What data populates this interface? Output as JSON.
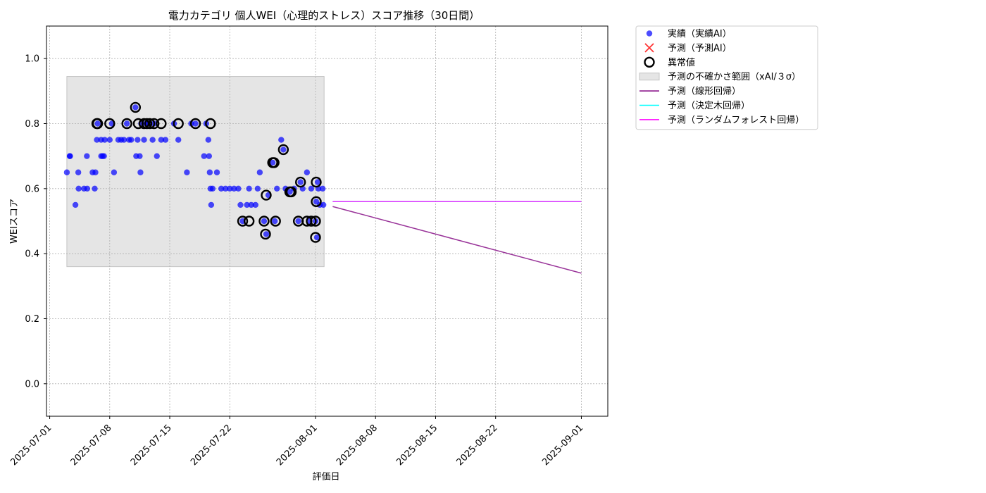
{
  "chart_data": {
    "type": "scatter",
    "title": "電力カテゴリ 個人WEI（心理的ストレス）スコア推移（30日間）",
    "xlabel": "評価日",
    "ylabel": "WEIスコア",
    "xlim": [
      "2025-06-30T15:00",
      "2025-09-04T02:00"
    ],
    "ylim": [
      -0.1,
      1.1
    ],
    "grid": true,
    "legend_position": "outside-top-right",
    "x_ticks": [
      "2025-07-01",
      "2025-07-08",
      "2025-07-15",
      "2025-07-22",
      "2025-08-01",
      "2025-08-08",
      "2025-08-15",
      "2025-08-22",
      "2025-09-01"
    ],
    "y_ticks": [
      "0.0",
      "0.2",
      "0.4",
      "0.6",
      "0.8",
      "1.0"
    ],
    "uncertainty_band": {
      "x_start": "2025-07-03T00:00",
      "x_end": "2025-08-02T00:00",
      "y_low": 0.36,
      "y_high": 0.945,
      "color": "#d3d3d3"
    },
    "series": [
      {
        "name": "実績（実績AI）",
        "kind": "scatter",
        "color": "#0000ff",
        "points": [
          [
            "2025-07-03T00:00",
            0.65
          ],
          [
            "2025-07-03T08:00",
            0.7
          ],
          [
            "2025-07-03T09:00",
            0.7
          ],
          [
            "2025-07-04T00:00",
            0.55
          ],
          [
            "2025-07-04T08:00",
            0.65
          ],
          [
            "2025-07-04T09:00",
            0.6
          ],
          [
            "2025-07-05T00:00",
            0.6
          ],
          [
            "2025-07-05T08:00",
            0.7
          ],
          [
            "2025-07-05T09:00",
            0.6
          ],
          [
            "2025-07-06T00:00",
            0.65
          ],
          [
            "2025-07-06T06:00",
            0.6
          ],
          [
            "2025-07-06T08:00",
            0.65
          ],
          [
            "2025-07-06T12:00",
            0.75
          ],
          [
            "2025-07-06T14:00",
            0.8
          ],
          [
            "2025-07-07T00:00",
            0.75
          ],
          [
            "2025-07-07T00:00",
            0.7
          ],
          [
            "2025-07-07T04:00",
            0.7
          ],
          [
            "2025-07-07T08:00",
            0.7
          ],
          [
            "2025-07-07T10:00",
            0.75
          ],
          [
            "2025-07-08T00:00",
            0.75
          ],
          [
            "2025-07-08T06:00",
            0.8
          ],
          [
            "2025-07-08T12:00",
            0.65
          ],
          [
            "2025-07-09T00:00",
            0.75
          ],
          [
            "2025-07-09T08:00",
            0.75
          ],
          [
            "2025-07-09T16:00",
            0.75
          ],
          [
            "2025-07-10T00:00",
            0.8
          ],
          [
            "2025-07-10T06:00",
            0.75
          ],
          [
            "2025-07-10T12:00",
            0.75
          ],
          [
            "2025-07-11T00:00",
            0.85
          ],
          [
            "2025-07-11T02:00",
            0.7
          ],
          [
            "2025-07-11T06:00",
            0.75
          ],
          [
            "2025-07-11T12:00",
            0.7
          ],
          [
            "2025-07-11T14:00",
            0.65
          ],
          [
            "2025-07-11T16:00",
            0.8
          ],
          [
            "2025-07-12T00:00",
            0.75
          ],
          [
            "2025-07-12T06:00",
            0.8
          ],
          [
            "2025-07-12T12:00",
            0.8
          ],
          [
            "2025-07-13T00:00",
            0.75
          ],
          [
            "2025-07-13T04:00",
            0.8
          ],
          [
            "2025-07-13T12:00",
            0.7
          ],
          [
            "2025-07-14T00:00",
            0.75
          ],
          [
            "2025-07-14T12:00",
            0.75
          ],
          [
            "2025-07-15T12:00",
            0.8
          ],
          [
            "2025-07-16T00:00",
            0.75
          ],
          [
            "2025-07-17T00:00",
            0.65
          ],
          [
            "2025-07-17T12:00",
            0.8
          ],
          [
            "2025-07-18T00:00",
            0.8
          ],
          [
            "2025-07-19T00:00",
            0.7
          ],
          [
            "2025-07-19T06:00",
            0.8
          ],
          [
            "2025-07-19T12:00",
            0.75
          ],
          [
            "2025-07-19T14:00",
            0.7
          ],
          [
            "2025-07-19T16:00",
            0.65
          ],
          [
            "2025-07-19T18:00",
            0.6
          ],
          [
            "2025-07-19T20:00",
            0.55
          ],
          [
            "2025-07-20T00:00",
            0.6
          ],
          [
            "2025-07-20T12:00",
            0.65
          ],
          [
            "2025-07-21T00:00",
            0.6
          ],
          [
            "2025-07-21T12:00",
            0.6
          ],
          [
            "2025-07-22T00:00",
            0.6
          ],
          [
            "2025-07-22T12:00",
            0.6
          ],
          [
            "2025-07-23T00:00",
            0.6
          ],
          [
            "2025-07-23T06:00",
            0.55
          ],
          [
            "2025-07-23T12:00",
            0.5
          ],
          [
            "2025-07-24T00:00",
            0.55
          ],
          [
            "2025-07-24T06:00",
            0.6
          ],
          [
            "2025-07-24T12:00",
            0.55
          ],
          [
            "2025-07-25T00:00",
            0.55
          ],
          [
            "2025-07-25T06:00",
            0.6
          ],
          [
            "2025-07-25T12:00",
            0.65
          ],
          [
            "2025-07-26T00:00",
            0.5
          ],
          [
            "2025-07-26T06:00",
            0.46
          ],
          [
            "2025-07-26T12:00",
            0.58
          ],
          [
            "2025-07-27T00:00",
            0.68
          ],
          [
            "2025-07-27T06:00",
            0.5
          ],
          [
            "2025-07-27T12:00",
            0.6
          ],
          [
            "2025-07-28T00:00",
            0.75
          ],
          [
            "2025-07-28T06:00",
            0.72
          ],
          [
            "2025-07-28T12:00",
            0.6
          ],
          [
            "2025-07-29T00:00",
            0.59
          ],
          [
            "2025-07-29T12:00",
            0.6
          ],
          [
            "2025-07-30T00:00",
            0.5
          ],
          [
            "2025-07-30T06:00",
            0.62
          ],
          [
            "2025-07-30T12:00",
            0.6
          ],
          [
            "2025-07-31T00:00",
            0.65
          ],
          [
            "2025-07-31T06:00",
            0.5
          ],
          [
            "2025-07-31T12:00",
            0.6
          ],
          [
            "2025-08-01T00:00",
            0.5
          ],
          [
            "2025-08-01T02:00",
            0.56
          ],
          [
            "2025-08-01T04:00",
            0.45
          ],
          [
            "2025-08-01T06:00",
            0.62
          ],
          [
            "2025-08-01T08:00",
            0.6
          ],
          [
            "2025-08-01T12:00",
            0.55
          ],
          [
            "2025-08-01T20:00",
            0.6
          ],
          [
            "2025-08-01T22:00",
            0.55
          ]
        ]
      },
      {
        "name": "予測（予測AI）",
        "kind": "scatter-x",
        "color": "#ff0000",
        "points": []
      },
      {
        "name": "異常値",
        "kind": "outlier-ring",
        "color": "#000000",
        "points": [
          [
            "2025-07-06T12:00",
            0.8
          ],
          [
            "2025-07-06T14:00",
            0.8
          ],
          [
            "2025-07-08T00:00",
            0.8
          ],
          [
            "2025-07-10T00:00",
            0.8
          ],
          [
            "2025-07-11T00:00",
            0.85
          ],
          [
            "2025-07-11T08:00",
            0.8
          ],
          [
            "2025-07-12T00:00",
            0.8
          ],
          [
            "2025-07-12T08:00",
            0.8
          ],
          [
            "2025-07-12T16:00",
            0.8
          ],
          [
            "2025-07-13T04:00",
            0.8
          ],
          [
            "2025-07-14T00:00",
            0.8
          ],
          [
            "2025-07-16T00:00",
            0.8
          ],
          [
            "2025-07-18T00:00",
            0.8
          ],
          [
            "2025-07-19T18:00",
            0.8
          ],
          [
            "2025-07-23T12:00",
            0.5
          ],
          [
            "2025-07-24T06:00",
            0.5
          ],
          [
            "2025-07-26T00:00",
            0.5
          ],
          [
            "2025-07-26T04:00",
            0.46
          ],
          [
            "2025-07-26T06:00",
            0.58
          ],
          [
            "2025-07-27T00:00",
            0.68
          ],
          [
            "2025-07-27T04:00",
            0.68
          ],
          [
            "2025-07-27T08:00",
            0.5
          ],
          [
            "2025-07-28T06:00",
            0.72
          ],
          [
            "2025-07-29T00:00",
            0.59
          ],
          [
            "2025-07-29T04:00",
            0.59
          ],
          [
            "2025-07-30T00:00",
            0.5
          ],
          [
            "2025-07-30T06:00",
            0.62
          ],
          [
            "2025-07-31T00:00",
            0.5
          ],
          [
            "2025-07-31T12:00",
            0.5
          ],
          [
            "2025-08-01T00:00",
            0.5
          ],
          [
            "2025-08-01T00:00",
            0.45
          ],
          [
            "2025-08-01T02:00",
            0.56
          ],
          [
            "2025-08-01T02:00",
            0.62
          ]
        ]
      },
      {
        "name": "予測（線形回帰）",
        "kind": "line",
        "color": "#800080",
        "points": [
          [
            "2025-08-03T00:00",
            0.545
          ],
          [
            "2025-09-01T00:00",
            0.34
          ]
        ]
      },
      {
        "name": "予測（決定木回帰）",
        "kind": "line",
        "color": "#00ffff",
        "points": [
          [
            "2025-08-03T00:00",
            0.56
          ],
          [
            "2025-09-01T00:00",
            0.56
          ]
        ]
      },
      {
        "name": "予測（ランダムフォレスト回帰）",
        "kind": "line",
        "color": "#ff00ff",
        "points": [
          [
            "2025-08-03T00:00",
            0.56
          ],
          [
            "2025-09-01T00:00",
            0.56
          ]
        ]
      }
    ],
    "legend": [
      {
        "label": "実績（実績AI）",
        "marker": "dot",
        "color": "#0000ff"
      },
      {
        "label": "予測（予測AI）",
        "marker": "x",
        "color": "#ff0000"
      },
      {
        "label": "異常値",
        "marker": "ring",
        "color": "#000000"
      },
      {
        "label": "予測の不確かさ範囲（xAI/３σ）",
        "marker": "patch",
        "color": "#d3d3d3"
      },
      {
        "label": "予測（線形回帰）",
        "marker": "line",
        "color": "#800080"
      },
      {
        "label": "予測（決定木回帰）",
        "marker": "line",
        "color": "#00ffff"
      },
      {
        "label": "予測（ランダムフォレスト回帰）",
        "marker": "line",
        "color": "#ff00ff"
      }
    ]
  }
}
